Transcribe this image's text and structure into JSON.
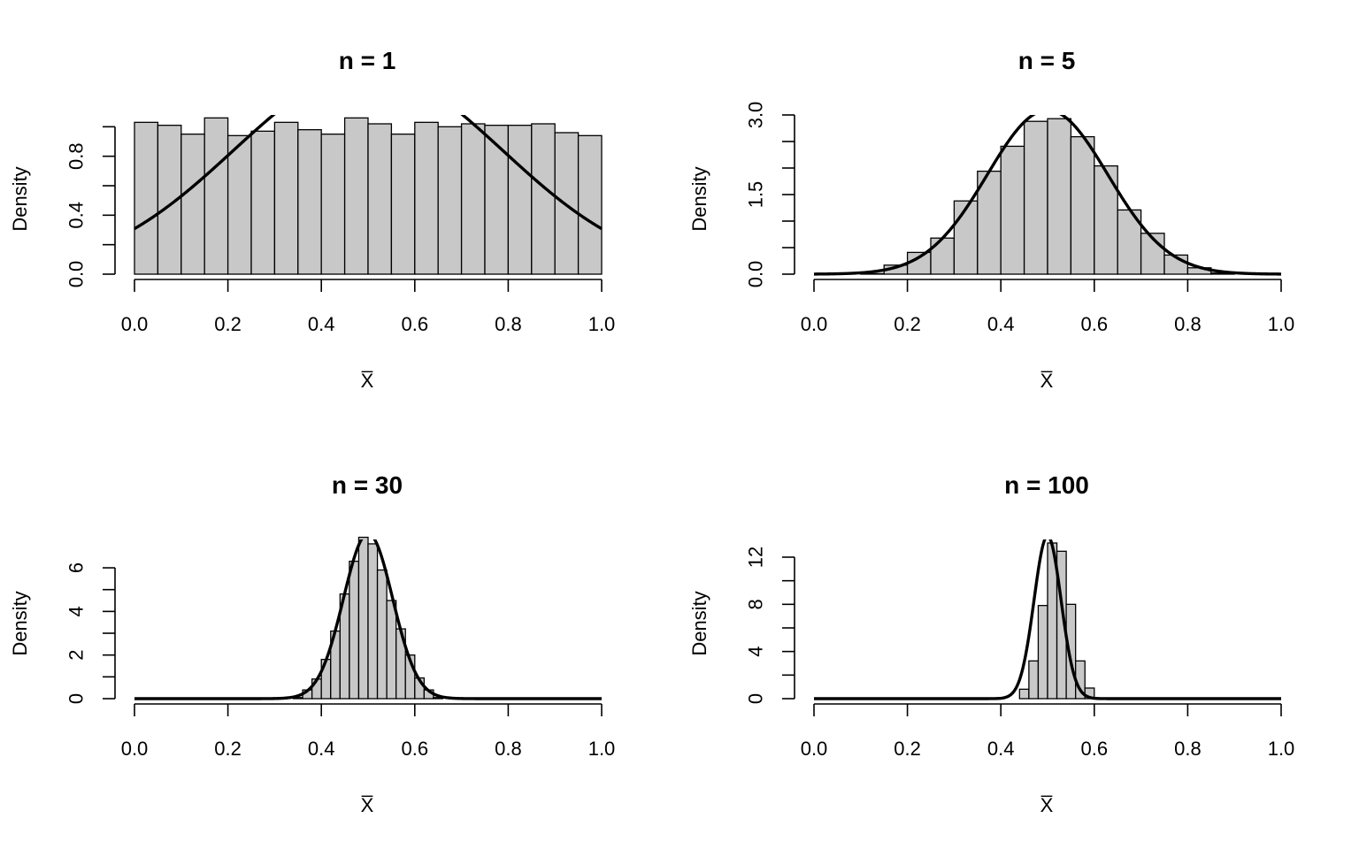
{
  "chart_data": [
    {
      "type": "bar",
      "title": "n = 1",
      "xlabel": "X̅",
      "ylabel": "Density",
      "xlim": [
        0,
        1
      ],
      "ylim": [
        0,
        1.08
      ],
      "xticks": [
        0.0,
        0.2,
        0.4,
        0.6,
        0.8,
        1.0
      ],
      "xtick_labels": [
        "0.0",
        "0.2",
        "0.4",
        "0.6",
        "0.8",
        "1.0"
      ],
      "yticks": [
        0.0,
        0.2,
        0.4,
        0.6,
        0.8,
        1.0
      ],
      "yticks_labeled": [
        "0.0",
        "0.4",
        "0.8"
      ],
      "bin_width": 0.05,
      "bin_start": 0.0,
      "values": [
        1.03,
        1.01,
        0.95,
        1.06,
        0.94,
        0.97,
        1.03,
        0.98,
        0.95,
        1.06,
        1.02,
        0.95,
        1.03,
        1.0,
        1.02,
        1.01,
        1.01,
        1.02,
        0.96,
        0.94
      ],
      "curve": {
        "type": "normal",
        "mean": 0.5,
        "sd": 0.2887
      }
    },
    {
      "type": "bar",
      "title": "n = 5",
      "xlabel": "X̅",
      "ylabel": "Density",
      "xlim": [
        0,
        1
      ],
      "ylim": [
        0,
        3.0
      ],
      "xticks": [
        0.0,
        0.2,
        0.4,
        0.6,
        0.8,
        1.0
      ],
      "xtick_labels": [
        "0.0",
        "0.2",
        "0.4",
        "0.6",
        "0.8",
        "1.0"
      ],
      "yticks": [
        0.0,
        0.5,
        1.0,
        1.5,
        2.0,
        2.5,
        3.0
      ],
      "yticks_labeled": [
        "0.0",
        "1.5",
        "3.0"
      ],
      "bin_width": 0.05,
      "bin_start": 0.0,
      "values": [
        0.0,
        0.0,
        0.01,
        0.17,
        0.41,
        0.68,
        1.38,
        1.94,
        2.41,
        2.88,
        2.93,
        2.59,
        2.04,
        1.21,
        0.77,
        0.36,
        0.12,
        0.02,
        0.0,
        0.0
      ],
      "curve": {
        "type": "normal",
        "mean": 0.5,
        "sd": 0.1291
      }
    },
    {
      "type": "bar",
      "title": "n = 30",
      "xlabel": "X̅",
      "ylabel": "Density",
      "xlim": [
        0,
        1
      ],
      "ylim": [
        0,
        7.3
      ],
      "xticks": [
        0.0,
        0.2,
        0.4,
        0.6,
        0.8,
        1.0
      ],
      "xtick_labels": [
        "0.0",
        "0.2",
        "0.4",
        "0.6",
        "0.8",
        "1.0"
      ],
      "yticks": [
        0,
        1,
        2,
        3,
        4,
        5,
        6
      ],
      "yticks_labeled": [
        "0",
        "2",
        "4",
        "6"
      ],
      "bin_width": 0.02,
      "bin_start": 0.34,
      "values": [
        0.05,
        0.4,
        0.9,
        1.8,
        3.1,
        4.8,
        6.3,
        7.4,
        7.1,
        5.9,
        4.5,
        3.2,
        2.0,
        0.95,
        0.4,
        0.05
      ],
      "curve": {
        "type": "normal",
        "mean": 0.5,
        "sd": 0.0527
      }
    },
    {
      "type": "bar",
      "title": "n = 100",
      "xlabel": "X̅",
      "ylabel": "Density",
      "xlim": [
        0,
        1
      ],
      "ylim": [
        0,
        13.5
      ],
      "xticks": [
        0.0,
        0.2,
        0.4,
        0.6,
        0.8,
        1.0
      ],
      "xtick_labels": [
        "0.0",
        "0.2",
        "0.4",
        "0.6",
        "0.8",
        "1.0"
      ],
      "yticks": [
        0,
        2,
        4,
        6,
        8,
        10,
        12
      ],
      "yticks_labeled": [
        "0",
        "4",
        "8",
        "12"
      ],
      "bin_width": 0.02,
      "bin_start": 0.42,
      "values": [
        0.0,
        0.8,
        3.2,
        7.9,
        13.2,
        12.5,
        8.0,
        3.2,
        0.9,
        0.05
      ],
      "curve": {
        "type": "normal",
        "mean": 0.5,
        "sd": 0.0289
      }
    }
  ]
}
